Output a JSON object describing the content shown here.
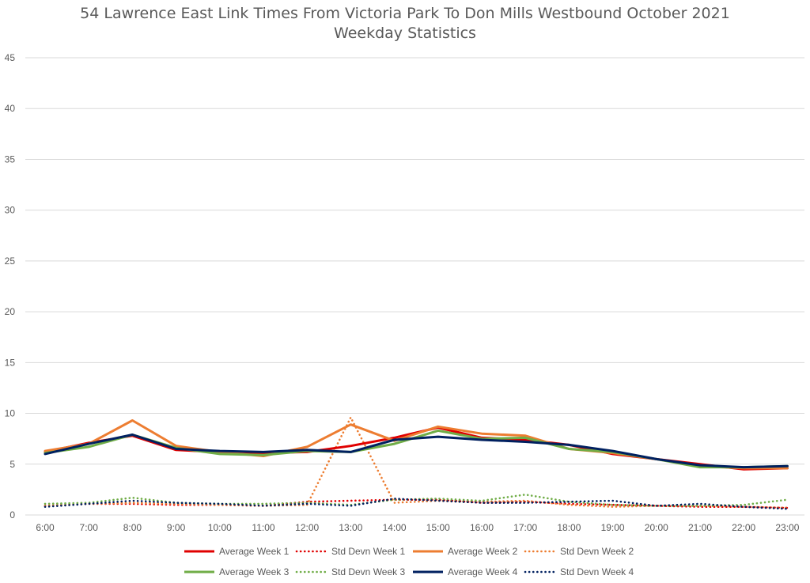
{
  "chart_data": {
    "type": "line",
    "title": "54 Lawrence East Link Times From Victoria Park To Don Mills Westbound October 2021",
    "subtitle": "Weekday Statistics",
    "xlabel": "",
    "ylabel": "",
    "ylim": [
      0,
      45
    ],
    "yticks": [
      0,
      5,
      10,
      15,
      20,
      25,
      30,
      35,
      40,
      45
    ],
    "grid": true,
    "legend_position": "bottom",
    "categories": [
      "6:00",
      "7:00",
      "8:00",
      "9:00",
      "10:00",
      "11:00",
      "12:00",
      "13:00",
      "14:00",
      "15:00",
      "16:00",
      "17:00",
      "18:00",
      "19:00",
      "20:00",
      "21:00",
      "22:00",
      "23:00"
    ],
    "series": [
      {
        "name": "Average Week 1",
        "color": "#e00000",
        "dash": "solid",
        "values": [
          6.2,
          7.1,
          7.8,
          6.4,
          6.2,
          6.1,
          6.2,
          6.8,
          7.6,
          8.6,
          7.6,
          7.4,
          6.9,
          6.0,
          5.5,
          5.0,
          4.5,
          4.6
        ]
      },
      {
        "name": "Std Devn Week 1",
        "color": "#e00000",
        "dash": "dotted",
        "values": [
          0.9,
          1.1,
          1.1,
          1.0,
          1.0,
          0.9,
          1.3,
          1.4,
          1.5,
          1.5,
          1.2,
          1.3,
          1.1,
          1.0,
          0.9,
          0.8,
          0.8,
          0.7
        ]
      },
      {
        "name": "Average Week 2",
        "color": "#ed7d31",
        "dash": "solid",
        "values": [
          6.3,
          7.0,
          9.3,
          6.8,
          6.2,
          5.8,
          6.7,
          8.9,
          7.3,
          8.7,
          8.0,
          7.8,
          6.5,
          6.1,
          5.5,
          4.8,
          4.6,
          4.6
        ]
      },
      {
        "name": "Std Devn Week 2",
        "color": "#ed7d31",
        "dash": "dotted",
        "values": [
          0.9,
          1.1,
          1.2,
          1.1,
          1.0,
          0.9,
          1.0,
          9.6,
          1.2,
          1.4,
          1.3,
          1.4,
          1.0,
          0.8,
          0.9,
          0.9,
          0.8,
          0.7
        ]
      },
      {
        "name": "Average Week 3",
        "color": "#70ad47",
        "dash": "solid",
        "values": [
          6.1,
          6.7,
          7.9,
          6.6,
          6.0,
          5.9,
          6.3,
          6.2,
          7.0,
          8.3,
          7.5,
          7.6,
          6.5,
          6.2,
          5.5,
          4.7,
          4.7,
          4.8
        ]
      },
      {
        "name": "Std Devn Week 3",
        "color": "#70ad47",
        "dash": "dotted",
        "values": [
          1.1,
          1.2,
          1.7,
          1.2,
          1.1,
          1.1,
          1.2,
          1.0,
          1.5,
          1.6,
          1.4,
          2.0,
          1.3,
          1.0,
          0.9,
          0.9,
          1.0,
          1.5
        ]
      },
      {
        "name": "Average Week 4",
        "color": "#002060",
        "dash": "solid",
        "values": [
          6.0,
          7.0,
          7.9,
          6.5,
          6.3,
          6.2,
          6.4,
          6.2,
          7.4,
          7.7,
          7.4,
          7.2,
          6.9,
          6.3,
          5.5,
          4.9,
          4.7,
          4.8
        ]
      },
      {
        "name": "Std Devn Week 4",
        "color": "#002060",
        "dash": "dotted",
        "values": [
          0.8,
          1.1,
          1.4,
          1.2,
          1.1,
          0.9,
          1.1,
          0.9,
          1.6,
          1.4,
          1.2,
          1.2,
          1.3,
          1.4,
          0.9,
          1.1,
          0.8,
          0.6
        ]
      }
    ]
  }
}
